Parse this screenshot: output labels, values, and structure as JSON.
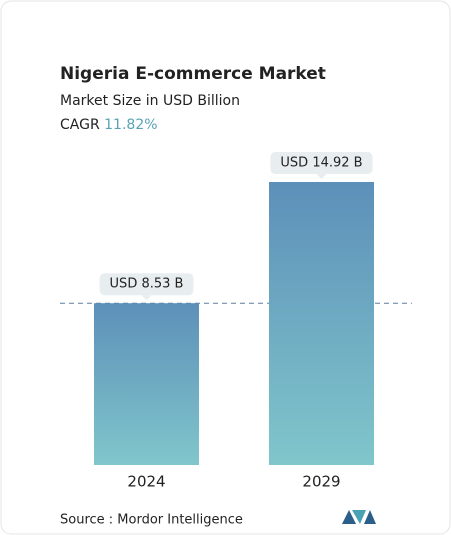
{
  "chart_data": {
    "type": "bar",
    "title": "Nigeria E-commerce Market",
    "subtitle": "Market Size in USD Billion",
    "cagr_label": "CAGR",
    "cagr": "11.82%",
    "categories": [
      "2024",
      "2029"
    ],
    "values": [
      8.53,
      14.92
    ],
    "value_labels": [
      "USD 8.53 B",
      "USD 14.92 B"
    ],
    "source": "Source :  Mordor Intelligence"
  }
}
